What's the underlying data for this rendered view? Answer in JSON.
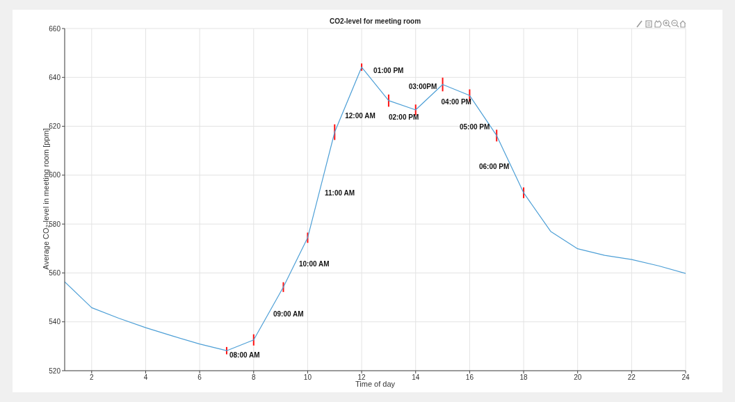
{
  "chart_data": {
    "type": "line",
    "title": "CO2-level for meeting room",
    "xlabel": "Time of day",
    "ylabel": "Average CO₂-level in meeting room [ppm]",
    "x": [
      1,
      2,
      3,
      4,
      5,
      6,
      7,
      8,
      9.1,
      10,
      11,
      12,
      13,
      14,
      15,
      16,
      17,
      18,
      19,
      20,
      21,
      22,
      23,
      24
    ],
    "series": [
      {
        "color": "#4d9fd6",
        "values": [
          556.4,
          545.8,
          541.5,
          537.6,
          534.2,
          530.9,
          528.2,
          532.6,
          554.2,
          574.4,
          617.6,
          644.2,
          630.5,
          626.7,
          637.1,
          632.6,
          616.2,
          592.8,
          577.0,
          569.9,
          567.2,
          565.5,
          562.9,
          559.8
        ],
        "errors": [
          null,
          null,
          null,
          null,
          null,
          null,
          1.5,
          2.3,
          2,
          2.1,
          3.2,
          1.5,
          2.5,
          2.2,
          2.8,
          2.5,
          2.4,
          2.2,
          null,
          null,
          null,
          null,
          null,
          null
        ]
      }
    ],
    "xlim": [
      1,
      24
    ],
    "xticks": [
      2,
      4,
      6,
      8,
      10,
      12,
      14,
      16,
      18,
      20,
      22,
      24
    ],
    "ylim": [
      520,
      660
    ],
    "yticks": [
      520,
      540,
      560,
      580,
      600,
      620,
      640,
      660
    ],
    "grid": true,
    "marker": "none",
    "line_style": "solid",
    "legend": false,
    "annotations": [
      {
        "text": "08:00 AM",
        "x": 7,
        "y": 528.2
      },
      "09:00 AM",
      "10:00 AM",
      "11:00 AM",
      {
        "text": "12:00 AM",
        "x": 11,
        "y": 617.6
      },
      {
        "text": "01:00 PM",
        "x": 12,
        "y": 644.2
      },
      {
        "text": "02:00 PM",
        "x": 13,
        "y": 630.5
      },
      {
        "text": "03:00PM",
        "x": 14,
        "y": 626.7
      },
      {
        "text": "04:00 PM",
        "x": 15,
        "y": 637.1
      },
      "05:00 PM",
      "06:00 PM"
    ]
  }
}
